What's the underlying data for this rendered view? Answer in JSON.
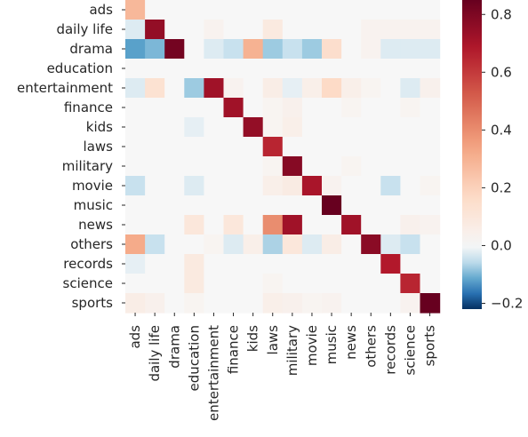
{
  "chart_data": {
    "type": "heatmap",
    "title": "",
    "xlabel": "",
    "ylabel": "",
    "rows": [
      "ads",
      "daily life",
      "drama",
      "education",
      "entertainment",
      "finance",
      "kids",
      "laws",
      "military",
      "movie",
      "music",
      "news",
      "others",
      "records",
      "science",
      "sports"
    ],
    "columns": [
      "ads",
      "daily life",
      "drama",
      "education",
      "entertainment",
      "finance",
      "kids",
      "laws",
      "military",
      "movie",
      "music",
      "news",
      "others",
      "records",
      "science",
      "sports"
    ],
    "values": [
      [
        0.28,
        0.0,
        0.0,
        0.0,
        0.0,
        0.0,
        0.0,
        0.0,
        0.0,
        0.0,
        0.0,
        0.0,
        0.0,
        0.0,
        0.0,
        0.0
      ],
      [
        -0.03,
        0.75,
        0.0,
        0.0,
        0.03,
        0.0,
        0.0,
        0.08,
        0.0,
        0.0,
        0.0,
        0.0,
        0.03,
        0.03,
        0.03,
        0.03
      ],
      [
        -0.12,
        -0.1,
        0.82,
        0.0,
        -0.03,
        -0.05,
        0.3,
        -0.08,
        -0.05,
        -0.08,
        0.15,
        0.0,
        0.03,
        -0.03,
        -0.03,
        -0.03
      ],
      [
        0.0,
        0.0,
        0.0,
        0.0,
        0.0,
        0.0,
        0.0,
        0.0,
        0.0,
        0.0,
        0.0,
        0.0,
        0.0,
        0.0,
        0.0,
        0.0
      ],
      [
        -0.03,
        0.13,
        0.0,
        -0.08,
        0.72,
        0.03,
        0.0,
        0.06,
        -0.02,
        0.05,
        0.17,
        0.05,
        0.02,
        0.0,
        -0.03,
        0.04
      ],
      [
        0.0,
        0.0,
        0.0,
        0.0,
        0.0,
        0.72,
        0.0,
        0.02,
        0.04,
        0.0,
        0.0,
        0.02,
        0.0,
        0.0,
        0.02,
        0.0
      ],
      [
        0.0,
        0.0,
        0.0,
        -0.02,
        0.0,
        0.0,
        0.75,
        0.02,
        0.05,
        0.0,
        0.0,
        0.0,
        0.0,
        0.0,
        0.0,
        0.0
      ],
      [
        0.0,
        0.0,
        0.0,
        0.0,
        0.0,
        0.0,
        0.0,
        0.65,
        0.0,
        0.0,
        0.0,
        0.0,
        0.0,
        0.0,
        0.0,
        0.0
      ],
      [
        0.0,
        0.0,
        0.0,
        0.0,
        0.0,
        0.0,
        0.0,
        0.02,
        0.78,
        0.0,
        0.0,
        0.02,
        0.0,
        0.0,
        0.0,
        0.0
      ],
      [
        -0.05,
        0.0,
        0.0,
        -0.03,
        0.0,
        0.0,
        0.0,
        0.05,
        0.07,
        0.7,
        0.03,
        0.0,
        0.0,
        -0.05,
        0.0,
        0.02
      ],
      [
        0.0,
        0.0,
        0.0,
        0.0,
        0.0,
        0.0,
        0.0,
        0.0,
        0.0,
        0.0,
        0.85,
        0.0,
        0.0,
        0.0,
        0.0,
        0.0
      ],
      [
        0.0,
        0.0,
        0.0,
        0.1,
        0.0,
        0.1,
        0.0,
        0.4,
        0.72,
        0.0,
        0.0,
        0.72,
        0.0,
        0.0,
        0.04,
        0.03
      ],
      [
        0.32,
        -0.05,
        0.0,
        0.0,
        0.02,
        -0.03,
        0.05,
        -0.07,
        0.1,
        -0.03,
        0.06,
        0.0,
        0.77,
        -0.03,
        -0.05,
        0.0
      ],
      [
        -0.02,
        0.0,
        0.0,
        0.08,
        0.0,
        0.0,
        0.0,
        0.0,
        0.0,
        0.0,
        0.0,
        0.0,
        0.0,
        0.68,
        0.0,
        0.0
      ],
      [
        0.0,
        0.0,
        0.0,
        0.08,
        0.0,
        0.0,
        0.0,
        0.02,
        0.0,
        0.0,
        0.0,
        0.0,
        0.0,
        0.0,
        0.65,
        0.0
      ],
      [
        0.06,
        0.04,
        0.0,
        0.02,
        0.0,
        0.0,
        0.0,
        0.05,
        0.04,
        0.02,
        0.03,
        0.0,
        0.0,
        0.0,
        0.03,
        0.85
      ]
    ],
    "colormap": "RdBu_r",
    "vmin": -0.22,
    "vmax": 0.85,
    "colorbar": {
      "ticks": [
        -0.2,
        0.0,
        0.2,
        0.4,
        0.6,
        0.8
      ],
      "tick_labels": [
        "−0.2",
        "0.0",
        "0.2",
        "0.4",
        "0.6",
        "0.8"
      ]
    },
    "grid": false,
    "legend": "colorbar-right"
  }
}
